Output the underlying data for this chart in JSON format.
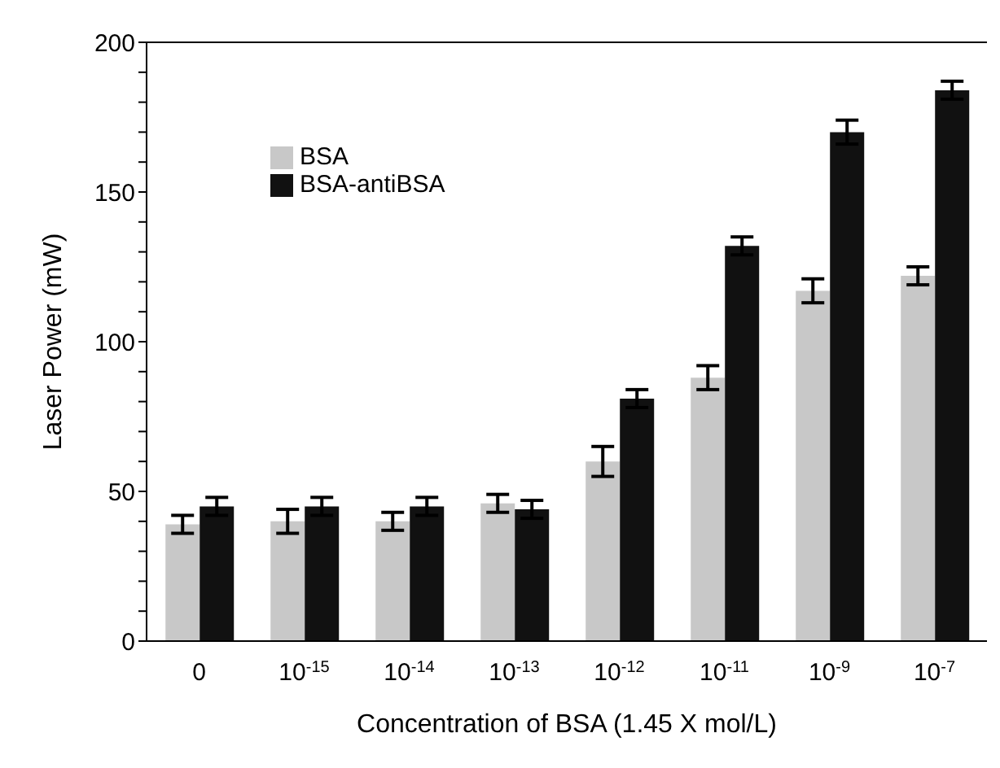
{
  "chart_data": {
    "type": "bar",
    "xlabel": "Concentration of BSA (1.45 X mol/L)",
    "ylabel": "Laser Power (mW)",
    "categories": [
      "0",
      "10$^{-15}$",
      "10$^{-14}$",
      "10$^{-13}$",
      "10$^{-12}$",
      "10$^{-11}$",
      "10$^{-9}$",
      "10$^{-7}$"
    ],
    "series": [
      {
        "name": "BSA",
        "color": "#c8c8c8",
        "values": [
          39,
          40,
          40,
          46,
          60,
          88,
          117,
          122
        ],
        "errors": [
          3,
          4,
          3,
          3,
          5,
          4,
          4,
          3
        ]
      },
      {
        "name": "BSA-antiBSA",
        "color": "#111111",
        "values": [
          45,
          45,
          45,
          44,
          81,
          132,
          170,
          184
        ],
        "errors": [
          3,
          3,
          3,
          3,
          3,
          3,
          4,
          3
        ]
      }
    ],
    "ylim": [
      0,
      200
    ],
    "yticks": [
      0,
      {
        "value": 10,
        "label": null
      },
      {
        "value": 20,
        "label": null
      },
      {
        "value": 30,
        "label": null
      },
      {
        "value": 40,
        "label": null
      },
      50,
      {
        "value": 60,
        "label": null
      },
      {
        "value": 70,
        "label": null
      },
      {
        "value": 80,
        "label": null
      },
      {
        "value": 90,
        "label": null
      },
      100,
      {
        "value": 110,
        "label": null
      },
      {
        "value": 120,
        "label": null
      },
      {
        "value": 130,
        "label": null
      },
      {
        "value": 140,
        "label": null
      },
      150,
      {
        "value": 160,
        "label": null
      },
      {
        "value": 170,
        "label": null
      },
      {
        "value": 180,
        "label": null
      },
      {
        "value": 190,
        "label": null
      },
      200
    ],
    "legend": "top left",
    "grid": false
  }
}
